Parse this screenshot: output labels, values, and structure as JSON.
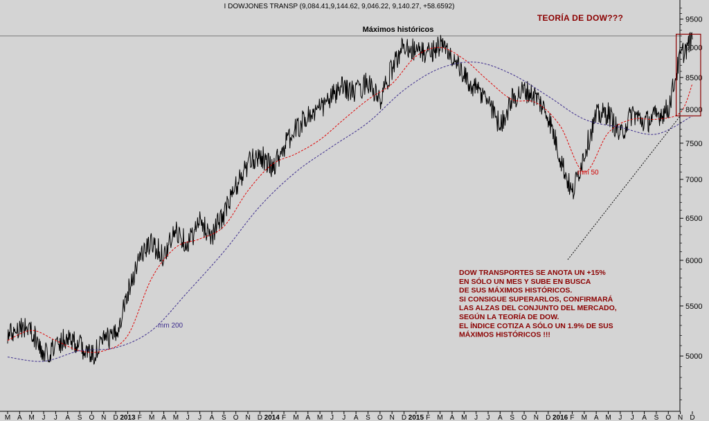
{
  "header": "I DOWJONES TRANSP (9,084.41,9,144.62, 9,046.22, 9,140.27, +58.6592)",
  "top_right_title": "TEORÍA DE DOW???",
  "colors": {
    "background": "#d4d4d4",
    "price": "#000000",
    "mm50": "#e00000",
    "mm200": "#3b2b8c",
    "annotation": "#8b0000"
  },
  "chart_data": {
    "type": "line",
    "title": "Máximos históricos",
    "y_scale": "log",
    "ylim": [
      4500,
      9800
    ],
    "y_ticks": [
      "9500",
      "9000",
      "8500",
      "8000",
      "7500",
      "7000",
      "6500",
      "6000",
      "5500",
      "5000"
    ],
    "x_months": [
      "M",
      "A",
      "M",
      "J",
      "J",
      "A",
      "S",
      "O",
      "N",
      "D",
      "2013",
      "F",
      "M",
      "A",
      "M",
      "J",
      "J",
      "A",
      "S",
      "O",
      "N",
      "D",
      "2014",
      "F",
      "M",
      "A",
      "M",
      "J",
      "J",
      "A",
      "S",
      "O",
      "N",
      "D",
      "2015",
      "F",
      "M",
      "A",
      "M",
      "J",
      "J",
      "A",
      "S",
      "O",
      "N",
      "D",
      "2016",
      "F",
      "M",
      "A",
      "M",
      "J",
      "J",
      "A",
      "S",
      "O",
      "N",
      "D"
    ],
    "x_start": "2012-03",
    "x_end": "2016-12",
    "resistance_level": 9200,
    "series": [
      {
        "name": "",
        "style": "solid",
        "x": [
          "2012-03",
          "2012-04",
          "2012-05",
          "2012-06",
          "2012-07",
          "2012-08",
          "2012-09",
          "2012-10",
          "2012-11",
          "2012-12",
          "2013-01",
          "2013-02",
          "2013-03",
          "2013-04",
          "2013-05",
          "2013-06",
          "2013-07",
          "2013-08",
          "2013-09",
          "2013-10",
          "2013-11",
          "2013-12",
          "2014-01",
          "2014-02",
          "2014-03",
          "2014-04",
          "2014-05",
          "2014-06",
          "2014-07",
          "2014-08",
          "2014-09",
          "2014-10",
          "2014-11",
          "2014-12",
          "2015-01",
          "2015-02",
          "2015-03",
          "2015-04",
          "2015-05",
          "2015-06",
          "2015-07",
          "2015-08",
          "2015-09",
          "2015-10",
          "2015-11",
          "2015-12",
          "2016-01",
          "2016-02",
          "2016-03",
          "2016-04",
          "2016-05",
          "2016-06",
          "2016-07",
          "2016-08",
          "2016-09",
          "2016-10",
          "2016-11",
          "2016-12"
        ],
        "values": [
          5200,
          5300,
          5250,
          5000,
          5100,
          5200,
          5100,
          5000,
          5150,
          5200,
          5650,
          6050,
          6200,
          6050,
          6350,
          6200,
          6450,
          6300,
          6550,
          6900,
          7200,
          7350,
          7150,
          7450,
          7700,
          7900,
          8000,
          8200,
          8350,
          8250,
          8450,
          8100,
          8650,
          9050,
          8950,
          8900,
          9050,
          8850,
          8500,
          8300,
          8150,
          7750,
          8150,
          8300,
          8200,
          7900,
          7300,
          6800,
          7350,
          7900,
          7950,
          7600,
          7950,
          7800,
          7900,
          8000,
          8850,
          9140
        ]
      },
      {
        "name": "mm 50",
        "style": "dashed",
        "x": [
          "2012-03",
          "2012-05",
          "2012-07",
          "2012-09",
          "2012-11",
          "2013-01",
          "2013-03",
          "2013-05",
          "2013-07",
          "2013-09",
          "2013-11",
          "2014-01",
          "2014-03",
          "2014-05",
          "2014-07",
          "2014-09",
          "2014-11",
          "2015-01",
          "2015-03",
          "2015-05",
          "2015-07",
          "2015-09",
          "2015-11",
          "2016-01",
          "2016-03",
          "2016-05",
          "2016-07",
          "2016-09",
          "2016-11",
          "2016-12"
        ],
        "values": [
          5150,
          5250,
          5150,
          5050,
          5050,
          5200,
          5800,
          6150,
          6250,
          6400,
          6850,
          7200,
          7350,
          7550,
          7850,
          8150,
          8400,
          8850,
          9000,
          8800,
          8450,
          8150,
          8100,
          7750,
          7100,
          7650,
          7850,
          7850,
          7950,
          8400
        ]
      },
      {
        "name": "mm 200",
        "style": "dashed",
        "x": [
          "2012-03",
          "2012-06",
          "2012-09",
          "2012-12",
          "2013-03",
          "2013-06",
          "2013-09",
          "2013-12",
          "2014-03",
          "2014-06",
          "2014-09",
          "2014-12",
          "2015-03",
          "2015-06",
          "2015-09",
          "2015-12",
          "2016-03",
          "2016-06",
          "2016-09",
          "2016-12"
        ],
        "values": [
          4990,
          4950,
          5050,
          5080,
          5250,
          5650,
          6100,
          6650,
          7100,
          7450,
          7800,
          8300,
          8650,
          8750,
          8550,
          8200,
          7850,
          7730,
          7630,
          7900
        ]
      }
    ],
    "labels": [
      {
        "text": "mm 200",
        "series": "mm 200"
      },
      {
        "text": "mm 50",
        "series": "mm 50"
      }
    ],
    "annotation": {
      "lines": [
        "DOW TRANSPORTES SE ANOTA UN +15%",
        "EN SÓLO UN MES Y SUBE EN BUSCA",
        "DE SUS MÁXIMOS HISTÓRICOS.",
        "SI CONSIGUE SUPERARLOS, CONFIRMARÁ",
        "LAS ALZAS DEL CONJUNTO DEL MERCADO,",
        "SEGÚN LA TEORÍA DE DOW.",
        "EL ÍNDICE COTIZA A SÓLO UN 1.9% DE SUS",
        "MÁXIMOS HISTÓRICOS !!!"
      ]
    },
    "highlight_box": {
      "x_from": "2016-11",
      "x_to": "2016-12",
      "y_from": 7900,
      "y_to": 9230
    }
  }
}
